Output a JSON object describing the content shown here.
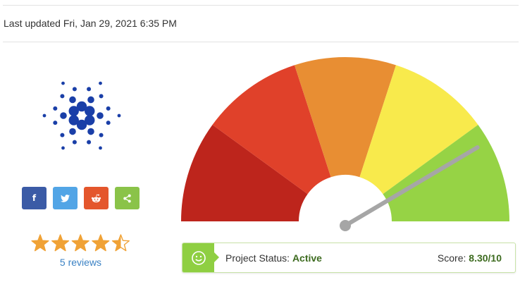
{
  "header": {
    "last_updated": "Last updated Fri, Jan 29, 2021 6:35 PM"
  },
  "logo": {
    "icon": "cardano-logo-icon",
    "color": "#1a3fa8"
  },
  "share": [
    {
      "network": "facebook",
      "icon": "facebook-icon",
      "glyph": "f",
      "color": "#3b5ba6"
    },
    {
      "network": "twitter",
      "icon": "twitter-icon",
      "glyph": "",
      "color": "#52a5e6"
    },
    {
      "network": "reddit",
      "icon": "reddit-icon",
      "glyph": "",
      "color": "#e4562c"
    },
    {
      "network": "share",
      "icon": "share-icon",
      "glyph": "",
      "color": "#8ac349"
    }
  ],
  "rating": {
    "stars": 4.5,
    "max_stars": 5,
    "star_color": "#f0a236",
    "reviews_label": "5 reviews"
  },
  "gauge": {
    "score": 8.3,
    "max": 10,
    "segment_colors": [
      "#bd251c",
      "#e0412a",
      "#e88e33",
      "#f8ea4c",
      "#96d345"
    ],
    "needle_color": "#a6a6a6"
  },
  "status": {
    "label": "Project Status: ",
    "value": "Active",
    "score_label": "Score: ",
    "score_value": "8.30/10",
    "icon": "smiley-icon",
    "accent": "#8fcf42"
  }
}
